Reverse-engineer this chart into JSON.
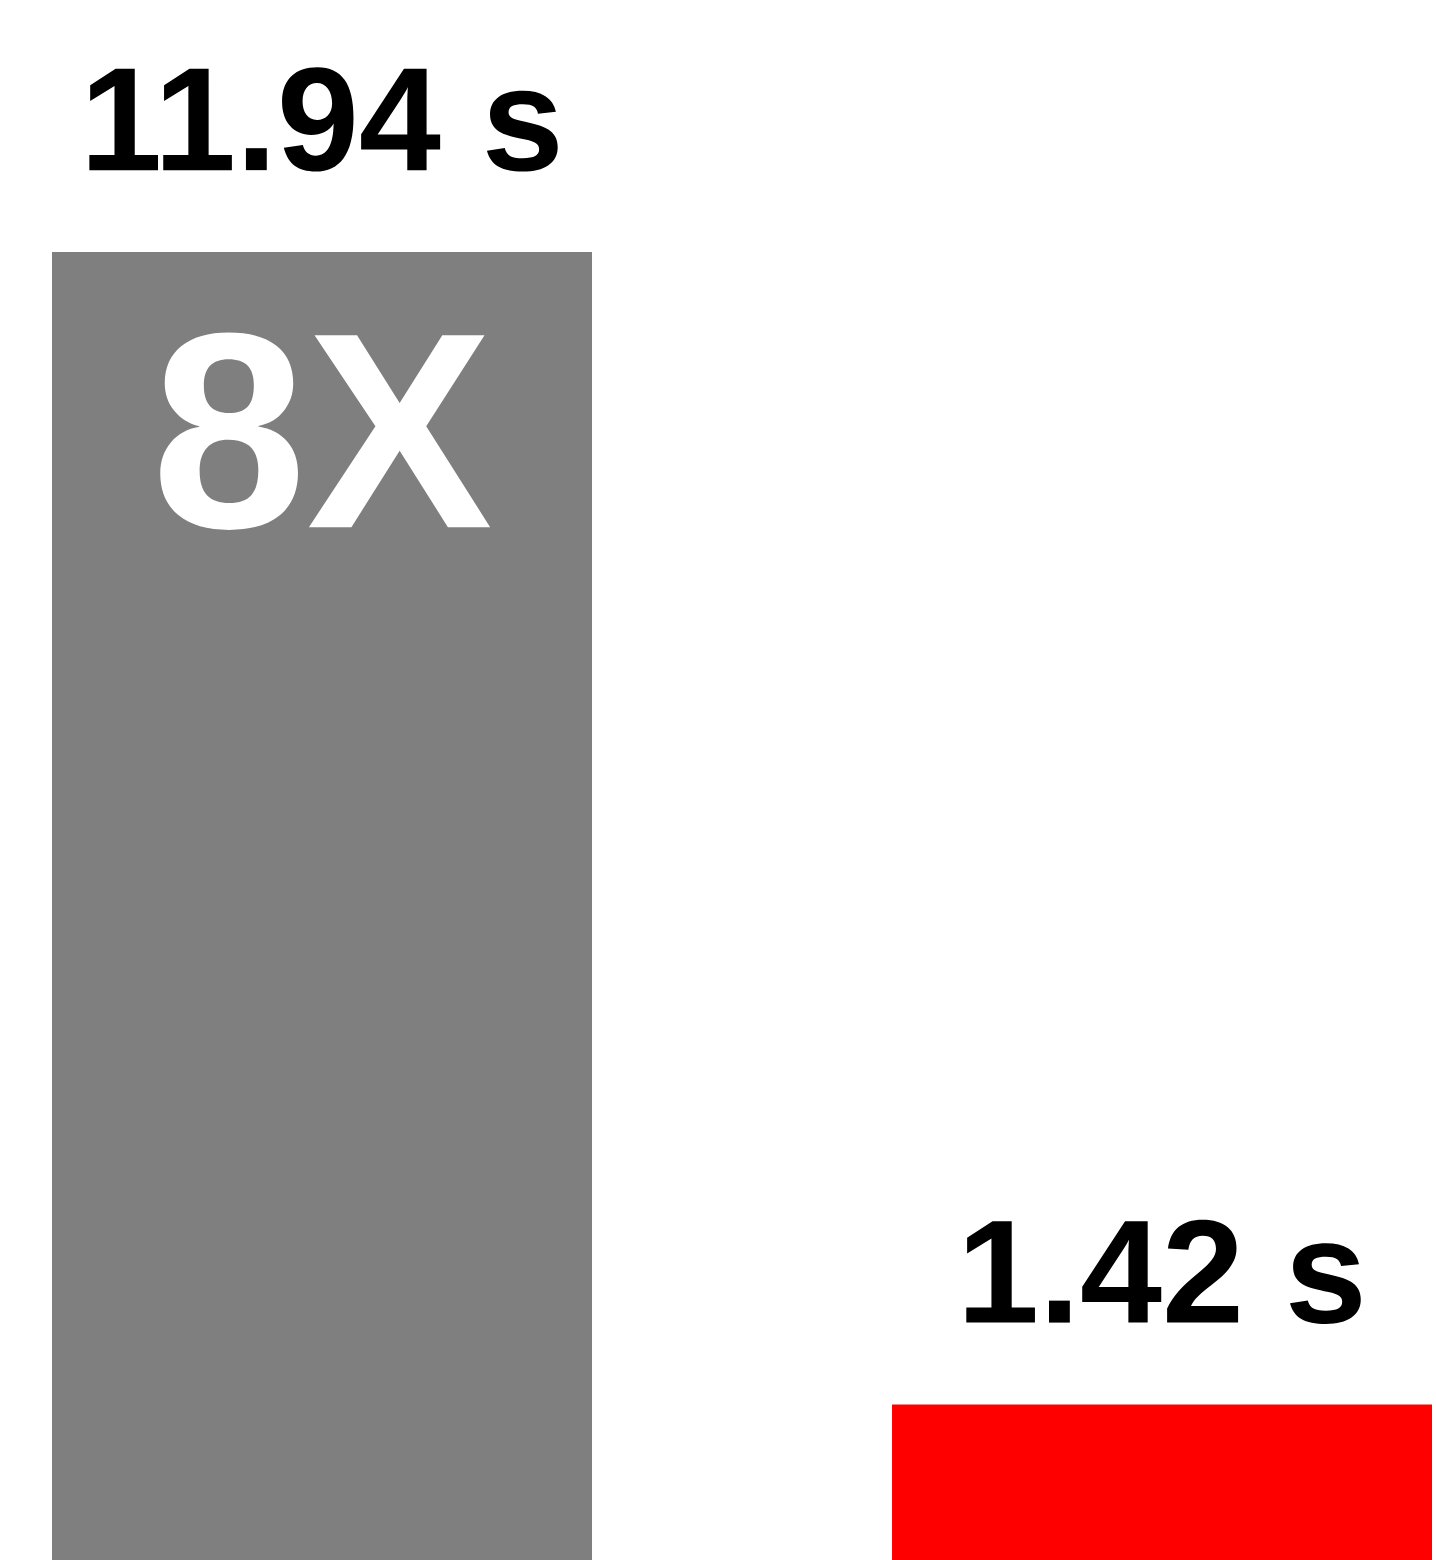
{
  "chart_data": {
    "type": "bar",
    "categories": [
      null,
      null
    ],
    "values": [
      11.94,
      1.42
    ],
    "colors": [
      "#7f7f7f",
      "#ff0000"
    ],
    "value_labels": [
      "11.94 s",
      "1.42 s"
    ],
    "annotations": [
      "8X"
    ]
  }
}
